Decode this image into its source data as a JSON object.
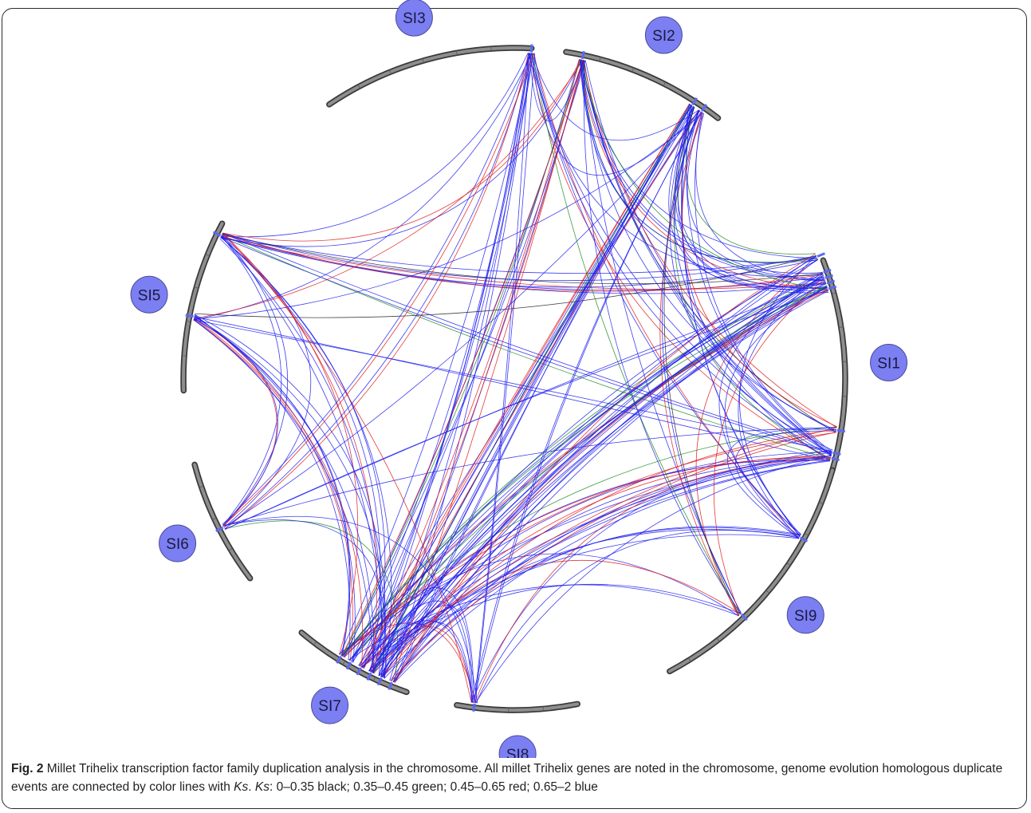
{
  "diagram": {
    "chromosomes": [
      {
        "id": "SI1",
        "label": "SI1",
        "start_deg": -21,
        "end_deg": 16
      },
      {
        "id": "SI2",
        "label": "SI2",
        "start_deg": -81,
        "end_deg": -52
      },
      {
        "id": "SI3",
        "label": "SI3",
        "start_deg": -124,
        "end_deg": -87
      },
      {
        "id": "SI5",
        "label": "SI5",
        "start_deg": -152,
        "end_deg": -182
      },
      {
        "id": "SI6",
        "label": "SI6",
        "start_deg": 165,
        "end_deg": 143
      },
      {
        "id": "SI7",
        "label": "SI7",
        "start_deg": 130,
        "end_deg": 109
      },
      {
        "id": "SI8",
        "label": "SI8",
        "start_deg": 100,
        "end_deg": 79
      },
      {
        "id": "SI9",
        "label": "SI9",
        "start_deg": 62,
        "end_deg": 16
      }
    ],
    "gene_positions_deg": [
      -87,
      -78,
      -57,
      -55,
      -22,
      -19,
      -18,
      -17,
      -16,
      9,
      13,
      14,
      29,
      46,
      -154,
      -169,
      153,
      112,
      114,
      116,
      118,
      120,
      122,
      97
    ],
    "ks_legend": [
      {
        "range": "0–0.35",
        "color_name": "black",
        "color": "#222222"
      },
      {
        "range": "0.35–0.45",
        "color_name": "green",
        "color": "#1a8a1a"
      },
      {
        "range": "0.45–0.65",
        "color_name": "red",
        "color": "#e01818"
      },
      {
        "range": "0.65–2",
        "color_name": "blue",
        "color": "#1c1cf0"
      }
    ]
  },
  "caption": {
    "fig_label": "Fig. 2",
    "text_1": " Millet Trihelix transcription factor family duplication analysis in the chromosome. All millet Trihelix genes are noted in the chromosome, genome evolution homologous duplicate events are connected by color lines with ",
    "ks_1": "Ks",
    "text_2": ". ",
    "ks_2": "Ks",
    "text_3": ": 0–0.35 black; 0.35–0.45 green; 0.45–0.65 red; 0.65–2 blue"
  }
}
